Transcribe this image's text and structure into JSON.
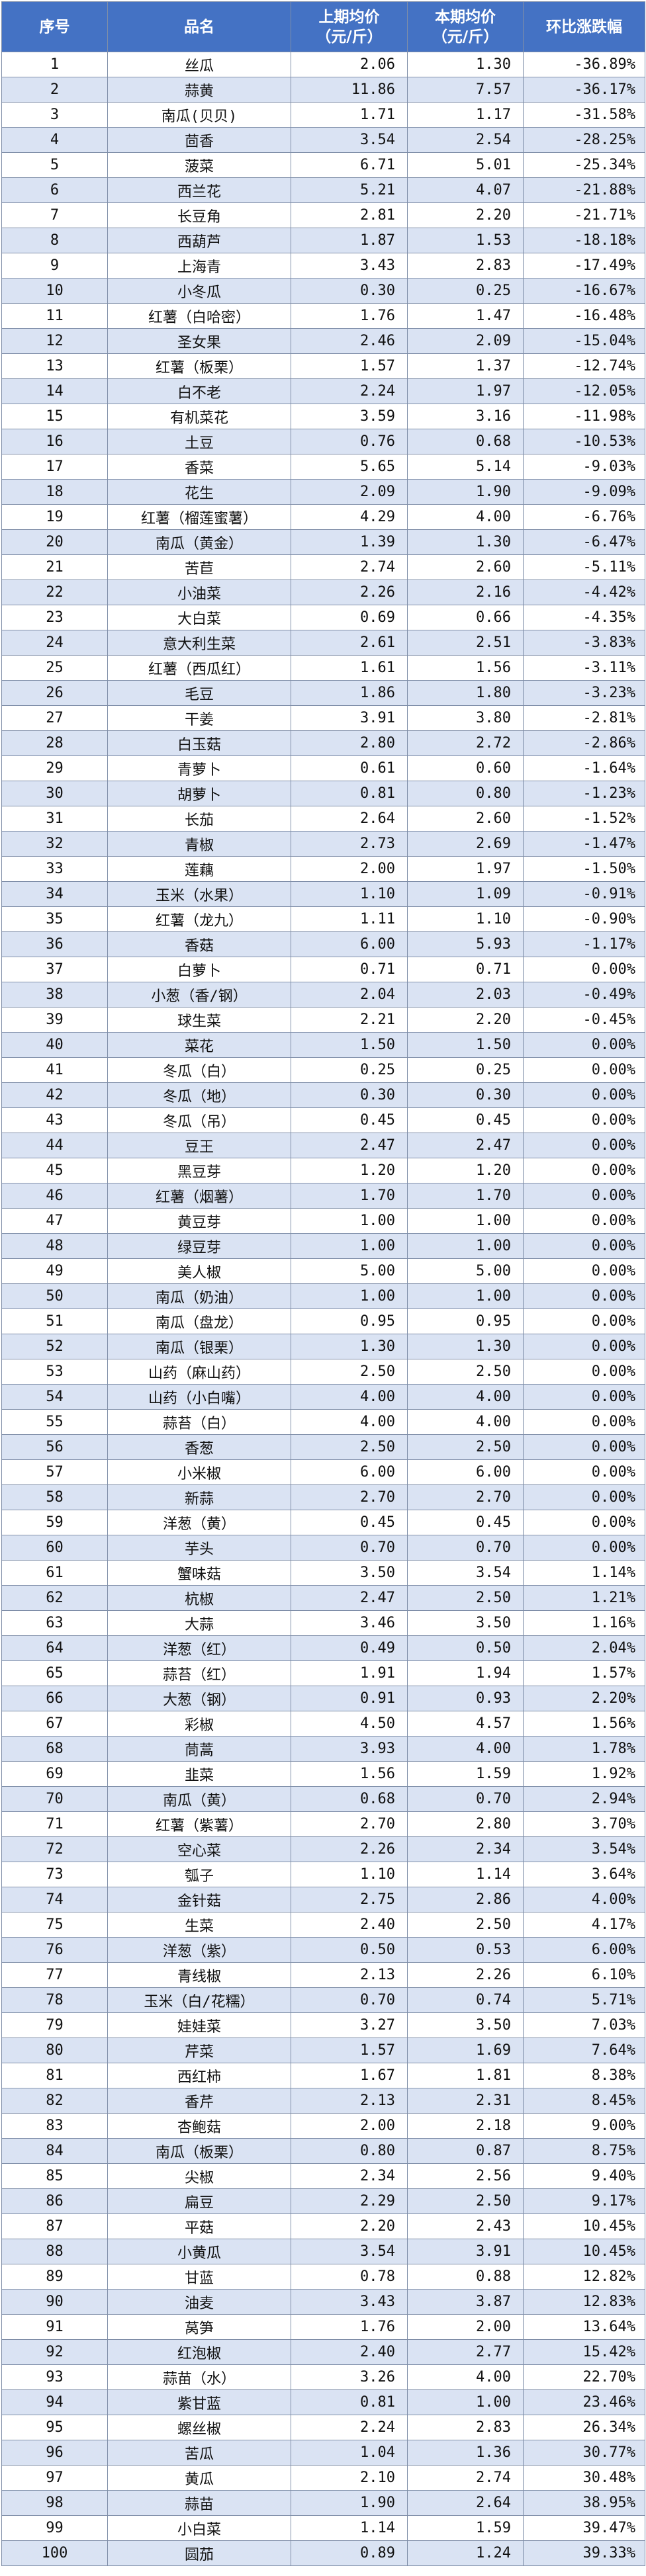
{
  "headers": {
    "no": "序号",
    "name": "品名",
    "prev_line1": "上期均价",
    "prev_line2": "（元/斤）",
    "curr_line1": "本期均价",
    "curr_line2": "（元/斤）",
    "change": "环比涨跌幅"
  },
  "colors": {
    "header_bg": "#4472c4",
    "header_text": "#ffffff",
    "row_alt_bg": "#dae3f3",
    "row_bg": "#ffffff",
    "border": "#7f8ea8"
  },
  "rows": [
    [
      "1",
      "丝瓜",
      "2.06",
      "1.30",
      "-36.89%"
    ],
    [
      "2",
      "蒜黄",
      "11.86",
      "7.57",
      "-36.17%"
    ],
    [
      "3",
      "南瓜(贝贝)",
      "1.71",
      "1.17",
      "-31.58%"
    ],
    [
      "4",
      "茴香",
      "3.54",
      "2.54",
      "-28.25%"
    ],
    [
      "5",
      "菠菜",
      "6.71",
      "5.01",
      "-25.34%"
    ],
    [
      "6",
      "西兰花",
      "5.21",
      "4.07",
      "-21.88%"
    ],
    [
      "7",
      "长豆角",
      "2.81",
      "2.20",
      "-21.71%"
    ],
    [
      "8",
      "西葫芦",
      "1.87",
      "1.53",
      "-18.18%"
    ],
    [
      "9",
      "上海青",
      "3.43",
      "2.83",
      "-17.49%"
    ],
    [
      "10",
      "小冬瓜",
      "0.30",
      "0.25",
      "-16.67%"
    ],
    [
      "11",
      "红薯（白哈密）",
      "1.76",
      "1.47",
      "-16.48%"
    ],
    [
      "12",
      "圣女果",
      "2.46",
      "2.09",
      "-15.04%"
    ],
    [
      "13",
      "红薯（板栗）",
      "1.57",
      "1.37",
      "-12.74%"
    ],
    [
      "14",
      "白不老",
      "2.24",
      "1.97",
      "-12.05%"
    ],
    [
      "15",
      "有机菜花",
      "3.59",
      "3.16",
      "-11.98%"
    ],
    [
      "16",
      "土豆",
      "0.76",
      "0.68",
      "-10.53%"
    ],
    [
      "17",
      "香菜",
      "5.65",
      "5.14",
      "-9.03%"
    ],
    [
      "18",
      "花生",
      "2.09",
      "1.90",
      "-9.09%"
    ],
    [
      "19",
      "红薯（榴莲蜜薯）",
      "4.29",
      "4.00",
      "-6.76%"
    ],
    [
      "20",
      "南瓜（黄金）",
      "1.39",
      "1.30",
      "-6.47%"
    ],
    [
      "21",
      "苦苣",
      "2.74",
      "2.60",
      "-5.11%"
    ],
    [
      "22",
      "小油菜",
      "2.26",
      "2.16",
      "-4.42%"
    ],
    [
      "23",
      "大白菜",
      "0.69",
      "0.66",
      "-4.35%"
    ],
    [
      "24",
      "意大利生菜",
      "2.61",
      "2.51",
      "-3.83%"
    ],
    [
      "25",
      "红薯（西瓜红）",
      "1.61",
      "1.56",
      "-3.11%"
    ],
    [
      "26",
      "毛豆",
      "1.86",
      "1.80",
      "-3.23%"
    ],
    [
      "27",
      "干姜",
      "3.91",
      "3.80",
      "-2.81%"
    ],
    [
      "28",
      "白玉菇",
      "2.80",
      "2.72",
      "-2.86%"
    ],
    [
      "29",
      "青萝卜",
      "0.61",
      "0.60",
      "-1.64%"
    ],
    [
      "30",
      "胡萝卜",
      "0.81",
      "0.80",
      "-1.23%"
    ],
    [
      "31",
      "长茄",
      "2.64",
      "2.60",
      "-1.52%"
    ],
    [
      "32",
      "青椒",
      "2.73",
      "2.69",
      "-1.47%"
    ],
    [
      "33",
      "莲藕",
      "2.00",
      "1.97",
      "-1.50%"
    ],
    [
      "34",
      "玉米（水果）",
      "1.10",
      "1.09",
      "-0.91%"
    ],
    [
      "35",
      "红薯（龙九）",
      "1.11",
      "1.10",
      "-0.90%"
    ],
    [
      "36",
      "香菇",
      "6.00",
      "5.93",
      "-1.17%"
    ],
    [
      "37",
      "白萝卜",
      "0.71",
      "0.71",
      "0.00%"
    ],
    [
      "38",
      "小葱（香/钢）",
      "2.04",
      "2.03",
      "-0.49%"
    ],
    [
      "39",
      "球生菜",
      "2.21",
      "2.20",
      "-0.45%"
    ],
    [
      "40",
      "菜花",
      "1.50",
      "1.50",
      "0.00%"
    ],
    [
      "41",
      "冬瓜（白）",
      "0.25",
      "0.25",
      "0.00%"
    ],
    [
      "42",
      "冬瓜（地）",
      "0.30",
      "0.30",
      "0.00%"
    ],
    [
      "43",
      "冬瓜（吊）",
      "0.45",
      "0.45",
      "0.00%"
    ],
    [
      "44",
      "豆王",
      "2.47",
      "2.47",
      "0.00%"
    ],
    [
      "45",
      "黑豆芽",
      "1.20",
      "1.20",
      "0.00%"
    ],
    [
      "46",
      "红薯（烟薯）",
      "1.70",
      "1.70",
      "0.00%"
    ],
    [
      "47",
      "黄豆芽",
      "1.00",
      "1.00",
      "0.00%"
    ],
    [
      "48",
      "绿豆芽",
      "1.00",
      "1.00",
      "0.00%"
    ],
    [
      "49",
      "美人椒",
      "5.00",
      "5.00",
      "0.00%"
    ],
    [
      "50",
      "南瓜（奶油）",
      "1.00",
      "1.00",
      "0.00%"
    ],
    [
      "51",
      "南瓜（盘龙）",
      "0.95",
      "0.95",
      "0.00%"
    ],
    [
      "52",
      "南瓜（银栗）",
      "1.30",
      "1.30",
      "0.00%"
    ],
    [
      "53",
      "山药（麻山药）",
      "2.50",
      "2.50",
      "0.00%"
    ],
    [
      "54",
      "山药（小白嘴）",
      "4.00",
      "4.00",
      "0.00%"
    ],
    [
      "55",
      "蒜苔（白）",
      "4.00",
      "4.00",
      "0.00%"
    ],
    [
      "56",
      "香葱",
      "2.50",
      "2.50",
      "0.00%"
    ],
    [
      "57",
      "小米椒",
      "6.00",
      "6.00",
      "0.00%"
    ],
    [
      "58",
      "新蒜",
      "2.70",
      "2.70",
      "0.00%"
    ],
    [
      "59",
      "洋葱（黄）",
      "0.45",
      "0.45",
      "0.00%"
    ],
    [
      "60",
      "芋头",
      "0.70",
      "0.70",
      "0.00%"
    ],
    [
      "61",
      "蟹味菇",
      "3.50",
      "3.54",
      "1.14%"
    ],
    [
      "62",
      "杭椒",
      "2.47",
      "2.50",
      "1.21%"
    ],
    [
      "63",
      "大蒜",
      "3.46",
      "3.50",
      "1.16%"
    ],
    [
      "64",
      "洋葱（红）",
      "0.49",
      "0.50",
      "2.04%"
    ],
    [
      "65",
      "蒜苔（红）",
      "1.91",
      "1.94",
      "1.57%"
    ],
    [
      "66",
      "大葱（钢）",
      "0.91",
      "0.93",
      "2.20%"
    ],
    [
      "67",
      "彩椒",
      "4.50",
      "4.57",
      "1.56%"
    ],
    [
      "68",
      "茼蒿",
      "3.93",
      "4.00",
      "1.78%"
    ],
    [
      "69",
      "韭菜",
      "1.56",
      "1.59",
      "1.92%"
    ],
    [
      "70",
      "南瓜（黄）",
      "0.68",
      "0.70",
      "2.94%"
    ],
    [
      "71",
      "红薯（紫薯）",
      "2.70",
      "2.80",
      "3.70%"
    ],
    [
      "72",
      "空心菜",
      "2.26",
      "2.34",
      "3.54%"
    ],
    [
      "73",
      "瓠子",
      "1.10",
      "1.14",
      "3.64%"
    ],
    [
      "74",
      "金针菇",
      "2.75",
      "2.86",
      "4.00%"
    ],
    [
      "75",
      "生菜",
      "2.40",
      "2.50",
      "4.17%"
    ],
    [
      "76",
      "洋葱（紫）",
      "0.50",
      "0.53",
      "6.00%"
    ],
    [
      "77",
      "青线椒",
      "2.13",
      "2.26",
      "6.10%"
    ],
    [
      "78",
      "玉米（白/花糯）",
      "0.70",
      "0.74",
      "5.71%"
    ],
    [
      "79",
      "娃娃菜",
      "3.27",
      "3.50",
      "7.03%"
    ],
    [
      "80",
      "芹菜",
      "1.57",
      "1.69",
      "7.64%"
    ],
    [
      "81",
      "西红柿",
      "1.67",
      "1.81",
      "8.38%"
    ],
    [
      "82",
      "香芹",
      "2.13",
      "2.31",
      "8.45%"
    ],
    [
      "83",
      "杏鲍菇",
      "2.00",
      "2.18",
      "9.00%"
    ],
    [
      "84",
      "南瓜（板栗）",
      "0.80",
      "0.87",
      "8.75%"
    ],
    [
      "85",
      "尖椒",
      "2.34",
      "2.56",
      "9.40%"
    ],
    [
      "86",
      "扁豆",
      "2.29",
      "2.50",
      "9.17%"
    ],
    [
      "87",
      "平菇",
      "2.20",
      "2.43",
      "10.45%"
    ],
    [
      "88",
      "小黄瓜",
      "3.54",
      "3.91",
      "10.45%"
    ],
    [
      "89",
      "甘蓝",
      "0.78",
      "0.88",
      "12.82%"
    ],
    [
      "90",
      "油麦",
      "3.43",
      "3.87",
      "12.83%"
    ],
    [
      "91",
      "莴笋",
      "1.76",
      "2.00",
      "13.64%"
    ],
    [
      "92",
      "红泡椒",
      "2.40",
      "2.77",
      "15.42%"
    ],
    [
      "93",
      "蒜苗（水）",
      "3.26",
      "4.00",
      "22.70%"
    ],
    [
      "94",
      "紫甘蓝",
      "0.81",
      "1.00",
      "23.46%"
    ],
    [
      "95",
      "螺丝椒",
      "2.24",
      "2.83",
      "26.34%"
    ],
    [
      "96",
      "苦瓜",
      "1.04",
      "1.36",
      "30.77%"
    ],
    [
      "97",
      "黄瓜",
      "2.10",
      "2.74",
      "30.48%"
    ],
    [
      "98",
      "蒜苗",
      "1.90",
      "2.64",
      "38.95%"
    ],
    [
      "99",
      "小白菜",
      "1.14",
      "1.59",
      "39.47%"
    ],
    [
      "100",
      "圆茄",
      "0.89",
      "1.24",
      "39.33%"
    ]
  ]
}
